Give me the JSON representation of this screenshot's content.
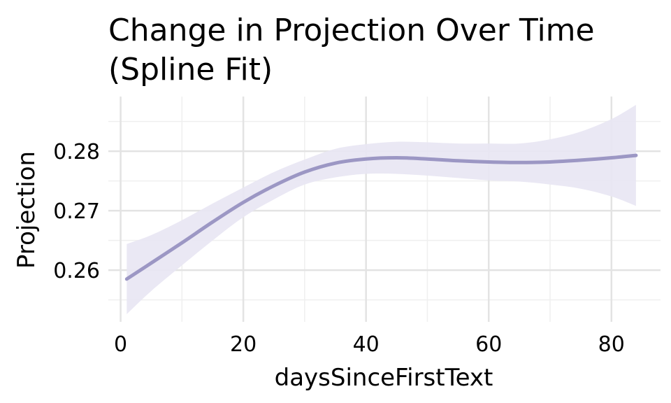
{
  "chart_data": {
    "type": "line",
    "title_lines": [
      "Change in Projection Over Time",
      "(Spline Fit)"
    ],
    "xlabel": "daysSinceFirstText",
    "ylabel": "Projection",
    "xlim": [
      -2,
      88
    ],
    "ylim": [
      0.2513,
      0.2892
    ],
    "x_ticks": [
      0,
      20,
      40,
      60,
      80
    ],
    "x_tick_labels": [
      "0",
      "20",
      "40",
      "60",
      "80"
    ],
    "x_minor_ticks": [
      10,
      30,
      50,
      70
    ],
    "y_ticks": [
      0.26,
      0.27,
      0.28
    ],
    "y_tick_labels": [
      "0.26",
      "0.27",
      "0.28"
    ],
    "y_minor_ticks": [
      0.255,
      0.265,
      0.275,
      0.285
    ],
    "grid": true,
    "series": [
      {
        "x": [
          1,
          5,
          10,
          15,
          20,
          25,
          30,
          35,
          40,
          45,
          50,
          55,
          60,
          65,
          70,
          75,
          80,
          84
        ],
        "y": [
          0.2585,
          0.2612,
          0.2646,
          0.2681,
          0.2714,
          0.2742,
          0.2765,
          0.278,
          0.2787,
          0.2789,
          0.2787,
          0.2784,
          0.2782,
          0.2781,
          0.2782,
          0.2785,
          0.2789,
          0.2793
        ],
        "ci_lower": [
          0.2526,
          0.2565,
          0.2608,
          0.265,
          0.2689,
          0.2719,
          0.2744,
          0.2756,
          0.2762,
          0.2762,
          0.2759,
          0.2755,
          0.2751,
          0.2749,
          0.2744,
          0.2737,
          0.2724,
          0.2708
        ],
        "ci_upper": [
          0.2644,
          0.2659,
          0.2684,
          0.2712,
          0.2739,
          0.2765,
          0.2786,
          0.2804,
          0.2812,
          0.2816,
          0.2815,
          0.2813,
          0.2813,
          0.2813,
          0.282,
          0.2833,
          0.2854,
          0.2878
        ]
      }
    ],
    "colors": {
      "line": "#9C97C4",
      "band": "#E8E6F3",
      "grid_major": "#E3E3E3",
      "grid_minor": "#EFEFEF"
    }
  }
}
